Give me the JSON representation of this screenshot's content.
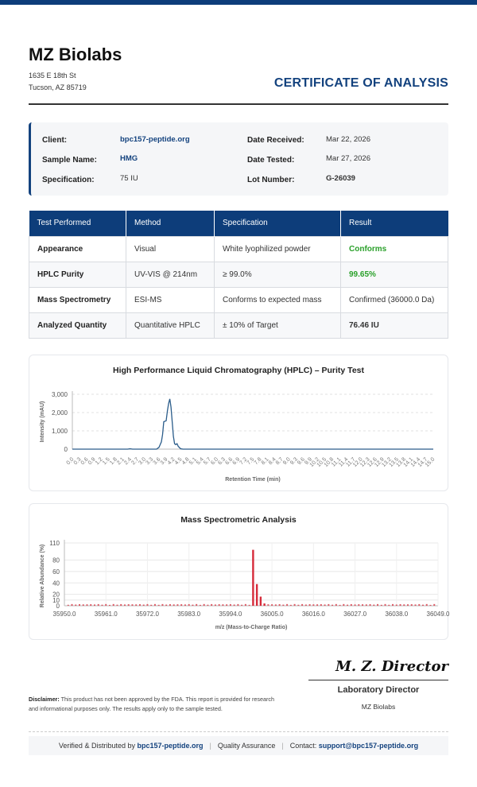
{
  "header": {
    "company": "MZ Biolabs",
    "address_line1": "1635 E 18th St",
    "address_line2": "Tucson, AZ 85719",
    "title": "CERTIFICATE OF ANALYSIS"
  },
  "info": {
    "client_label": "Client:",
    "client": "bpc157-peptide.org",
    "sample_label": "Sample Name:",
    "sample": "HMG",
    "spec_label": "Specification:",
    "spec": "75 IU",
    "received_label": "Date Received:",
    "received": "Mar 22, 2026",
    "tested_label": "Date Tested:",
    "tested": "Mar 27, 2026",
    "lot_label": "Lot Number:",
    "lot": "G-26039"
  },
  "results": {
    "headers": [
      "Test Performed",
      "Method",
      "Specification",
      "Result"
    ],
    "rows": [
      [
        "Appearance",
        "Visual",
        "White lyophilized powder",
        "Conforms"
      ],
      [
        "HPLC Purity",
        "UV-VIS @ 214nm",
        "≥ 99.0%",
        "99.65%"
      ],
      [
        "Mass Spectrometry",
        "ESI-MS",
        "Conforms to expected mass",
        "Confirmed (36000.0 Da)"
      ],
      [
        "Analyzed Quantity",
        "Quantitative HPLC",
        "± 10% of Target",
        "76.46 IU"
      ]
    ]
  },
  "chart_data": [
    {
      "type": "line",
      "title": "High Performance Liquid Chromatography (HPLC) – Purity Test",
      "xlabel": "Retention Time (min)",
      "ylabel": "Intensity (mAU)",
      "xlim": [
        0,
        15
      ],
      "ylim": [
        0,
        3000
      ],
      "yticks": [
        "0",
        "1,000",
        "2,000",
        "3,000"
      ],
      "xticks": [
        "0.0",
        "0.3",
        "0.6",
        "0.9",
        "1.2",
        "1.5",
        "1.8",
        "2.1",
        "2.4",
        "2.7",
        "3.0",
        "3.3",
        "3.6",
        "3.9",
        "4.2",
        "4.5",
        "4.8",
        "5.1",
        "5.4",
        "5.7",
        "6.0",
        "6.3",
        "6.6",
        "6.9",
        "7.2",
        "7.5",
        "7.8",
        "8.1",
        "8.4",
        "8.7",
        "9.0",
        "9.3",
        "9.6",
        "9.9",
        "10.2",
        "10.5",
        "10.8",
        "11.1",
        "11.4",
        "11.7",
        "12.0",
        "12.3",
        "12.6",
        "12.9",
        "13.2",
        "13.5",
        "13.8",
        "14.1",
        "14.4",
        "14.7",
        "15.0"
      ],
      "x": [
        0,
        2.3,
        2.4,
        2.5,
        3.5,
        3.6,
        3.7,
        3.75,
        3.8,
        3.9,
        3.95,
        4.0,
        4.05,
        4.1,
        4.15,
        4.2,
        4.25,
        4.3,
        4.35,
        4.4,
        4.5,
        4.6,
        15.0
      ],
      "y": [
        0,
        0,
        20,
        0,
        0,
        100,
        400,
        800,
        1500,
        1550,
        2100,
        2500,
        2750,
        2300,
        1500,
        700,
        300,
        250,
        300,
        150,
        20,
        0,
        0
      ],
      "grid": true,
      "color": "#2a5c8a"
    },
    {
      "type": "bar",
      "title": "Mass Spectrometric Analysis",
      "xlabel": "m/z (Mass-to-Charge Ratio)",
      "ylabel": "Relative Abundance (%)",
      "xlim": [
        35950,
        36049
      ],
      "ylim": [
        0,
        110
      ],
      "yticks": [
        "0",
        "10",
        "20",
        "40",
        "60",
        "80",
        "110"
      ],
      "xticks": [
        "35950.0",
        "35961.0",
        "35972.0",
        "35983.0",
        "35994.0",
        "36005.0",
        "36016.0",
        "36027.0",
        "36038.0",
        "36049.0"
      ],
      "peaks": [
        {
          "x": 36000,
          "y": 98
        },
        {
          "x": 36001,
          "y": 38
        },
        {
          "x": 36002,
          "y": 16
        },
        {
          "x": 36003,
          "y": 4
        }
      ],
      "noise_level": 3,
      "grid": true,
      "color": "#d62b3a"
    }
  ],
  "signature": {
    "script": "M. Z. Director",
    "title": "Laboratory Director",
    "org": "MZ Biolabs"
  },
  "disclaimer": {
    "label": "Disclaimer:",
    "text": "This product has not been approved by the FDA. This report is provided for research and informational purposes only. The results apply only to the sample tested."
  },
  "footer": {
    "verified": "Verified & Distributed by",
    "site": "bpc157-peptide.org",
    "qa": "Quality Assurance",
    "contact": "Contact:",
    "email": "support@bpc157-peptide.org"
  }
}
